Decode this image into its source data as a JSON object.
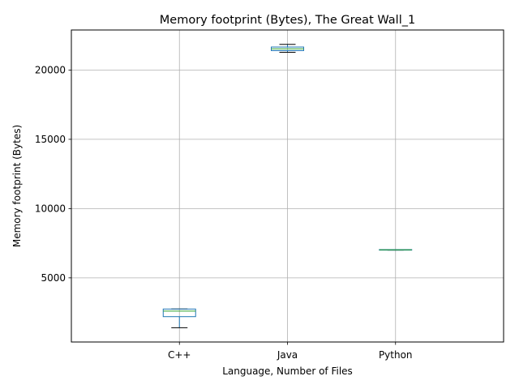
{
  "chart_data": {
    "type": "box",
    "title": "Memory footprint (Bytes), The Great Wall_1",
    "xlabel": "Language, Number of Files",
    "ylabel": "Memory footprint (Bytes)",
    "categories": [
      "C++",
      "Java",
      "Python"
    ],
    "ylim": [
      370,
      22890
    ],
    "yticks": [
      5000,
      10000,
      15000,
      20000
    ],
    "grid": true,
    "boxes": [
      {
        "category": "C++",
        "whisker_low": 1400,
        "q1": 2200,
        "median": 2600,
        "q3": 2750,
        "whisker_high": 2750
      },
      {
        "category": "Java",
        "whisker_low": 21280,
        "q1": 21400,
        "median": 21530,
        "q3": 21660,
        "whisker_high": 21850
      },
      {
        "category": "Python",
        "whisker_low": 7000,
        "q1": 7000,
        "median": 7020,
        "q3": 7040,
        "whisker_high": 7040
      }
    ],
    "colors": {
      "box": "#1f77b4",
      "median": "#2ca02c",
      "whisker": "#1f77b4",
      "cap": "#000000",
      "grid": "#b0b0b0"
    }
  }
}
